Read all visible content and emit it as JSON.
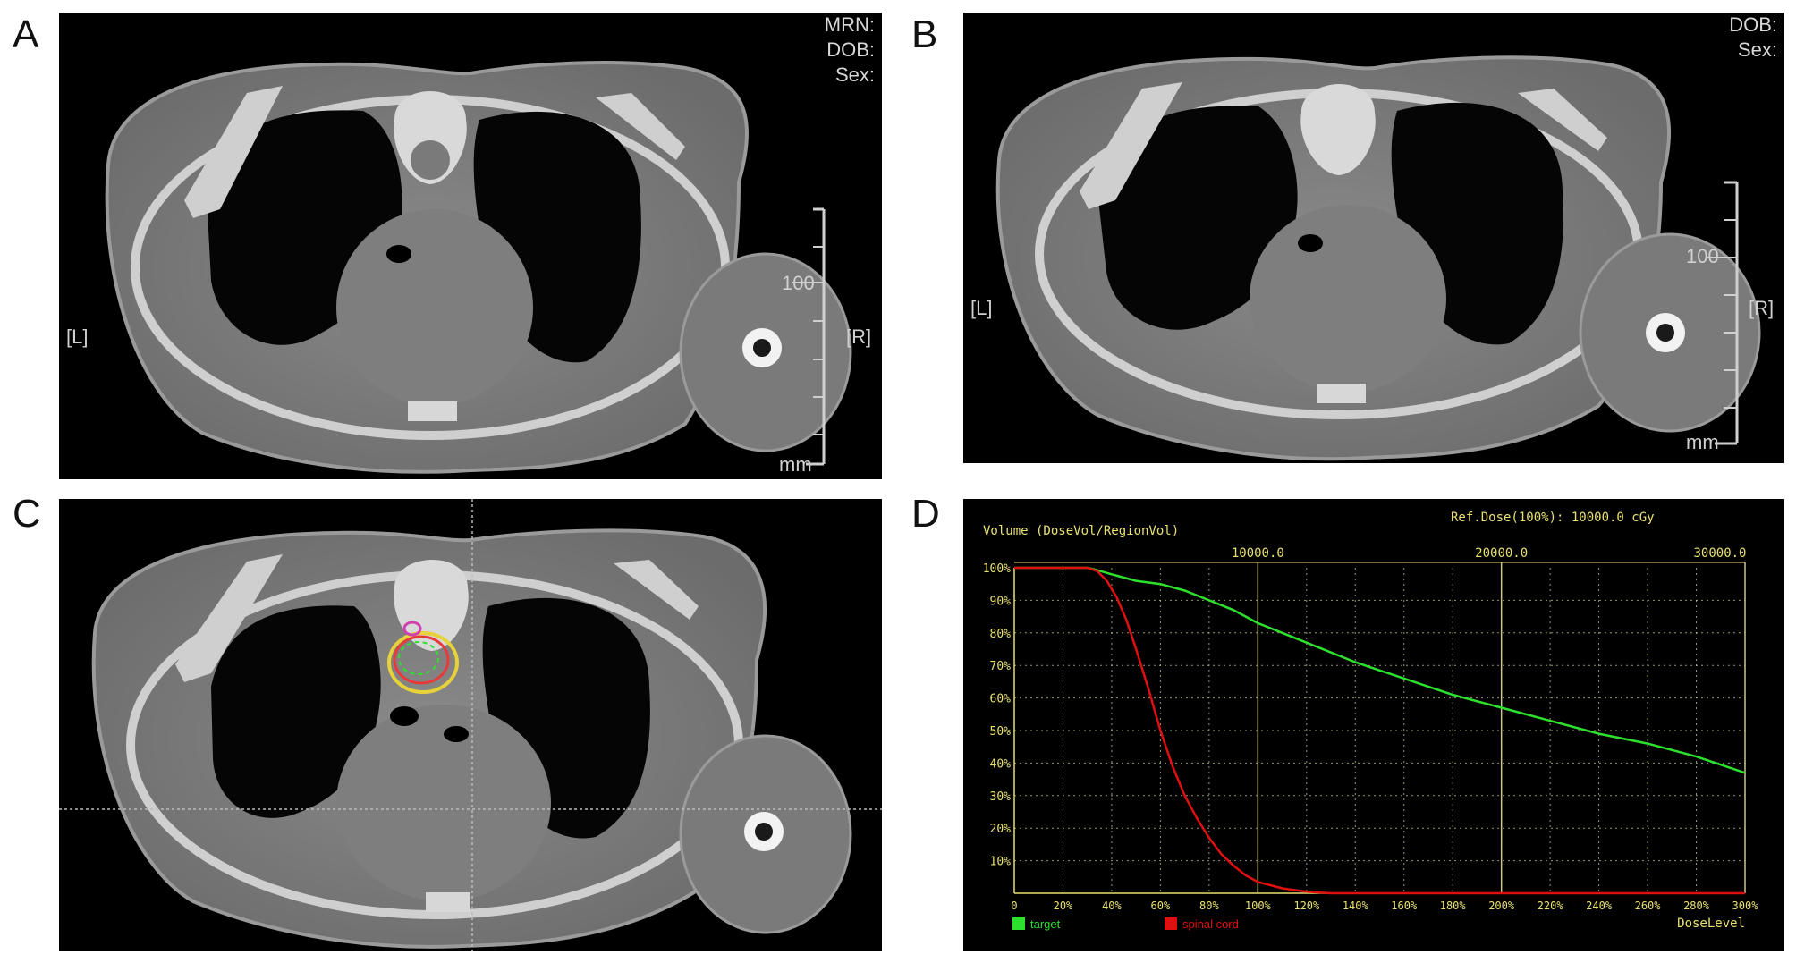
{
  "panels": {
    "a": {
      "letter": "A",
      "header": [
        "MRN:",
        "DOB:",
        "Sex:"
      ],
      "left_marker": "[L]",
      "right_marker": "[R]",
      "scale_value": "100",
      "scale_unit": "mm"
    },
    "b": {
      "letter": "B",
      "header": [
        "DOB:",
        "Sex:"
      ],
      "left_marker": "[L]",
      "right_marker": "[R]",
      "scale_value": "100",
      "scale_unit": "mm"
    },
    "c": {
      "letter": "C"
    },
    "d": {
      "letter": "D"
    }
  },
  "chart_data": {
    "type": "line",
    "title": "Volume (DoseVol/RegionVol)",
    "ref_dose": "Ref.Dose(100%):  10000.0 cGy",
    "xlabel": "DoseLevel",
    "x_ticks": [
      "0",
      "20%",
      "40%",
      "60%",
      "80%",
      "100%",
      "120%",
      "140%",
      "160%",
      "180%",
      "200%",
      "220%",
      "240%",
      "260%",
      "280%",
      "300%"
    ],
    "y_ticks": [
      "100%",
      "90%",
      "80%",
      "70%",
      "60%",
      "50%",
      "40%",
      "30%",
      "20%",
      "10%"
    ],
    "top_axis_ticks": [
      "10000.0",
      "20000.0",
      "30000.0"
    ],
    "xlim": [
      0,
      300
    ],
    "ylim": [
      0,
      100
    ],
    "grid": true,
    "legend_position": "bottom-left",
    "series": [
      {
        "name": "target",
        "color": "#2ee02e",
        "x": [
          0,
          30,
          33,
          40,
          50,
          60,
          70,
          80,
          90,
          100,
          110,
          120,
          140,
          160,
          180,
          200,
          220,
          240,
          260,
          280,
          300
        ],
        "y": [
          100,
          100,
          99.5,
          98,
          96,
          95,
          93,
          90,
          87,
          83,
          80,
          77,
          71,
          66,
          61,
          57,
          53,
          49,
          46,
          42,
          37
        ]
      },
      {
        "name": "spinal cord",
        "color": "#e01010",
        "x": [
          0,
          30,
          34,
          38,
          42,
          46,
          50,
          55,
          60,
          65,
          70,
          75,
          80,
          85,
          90,
          95,
          100,
          110,
          120,
          130,
          140,
          300
        ],
        "y": [
          100,
          100,
          99,
          96,
          91,
          84,
          75,
          63,
          50,
          39,
          30,
          23,
          17,
          12,
          8.5,
          5.5,
          3.5,
          1.5,
          0.5,
          0,
          0,
          0
        ]
      }
    ]
  }
}
